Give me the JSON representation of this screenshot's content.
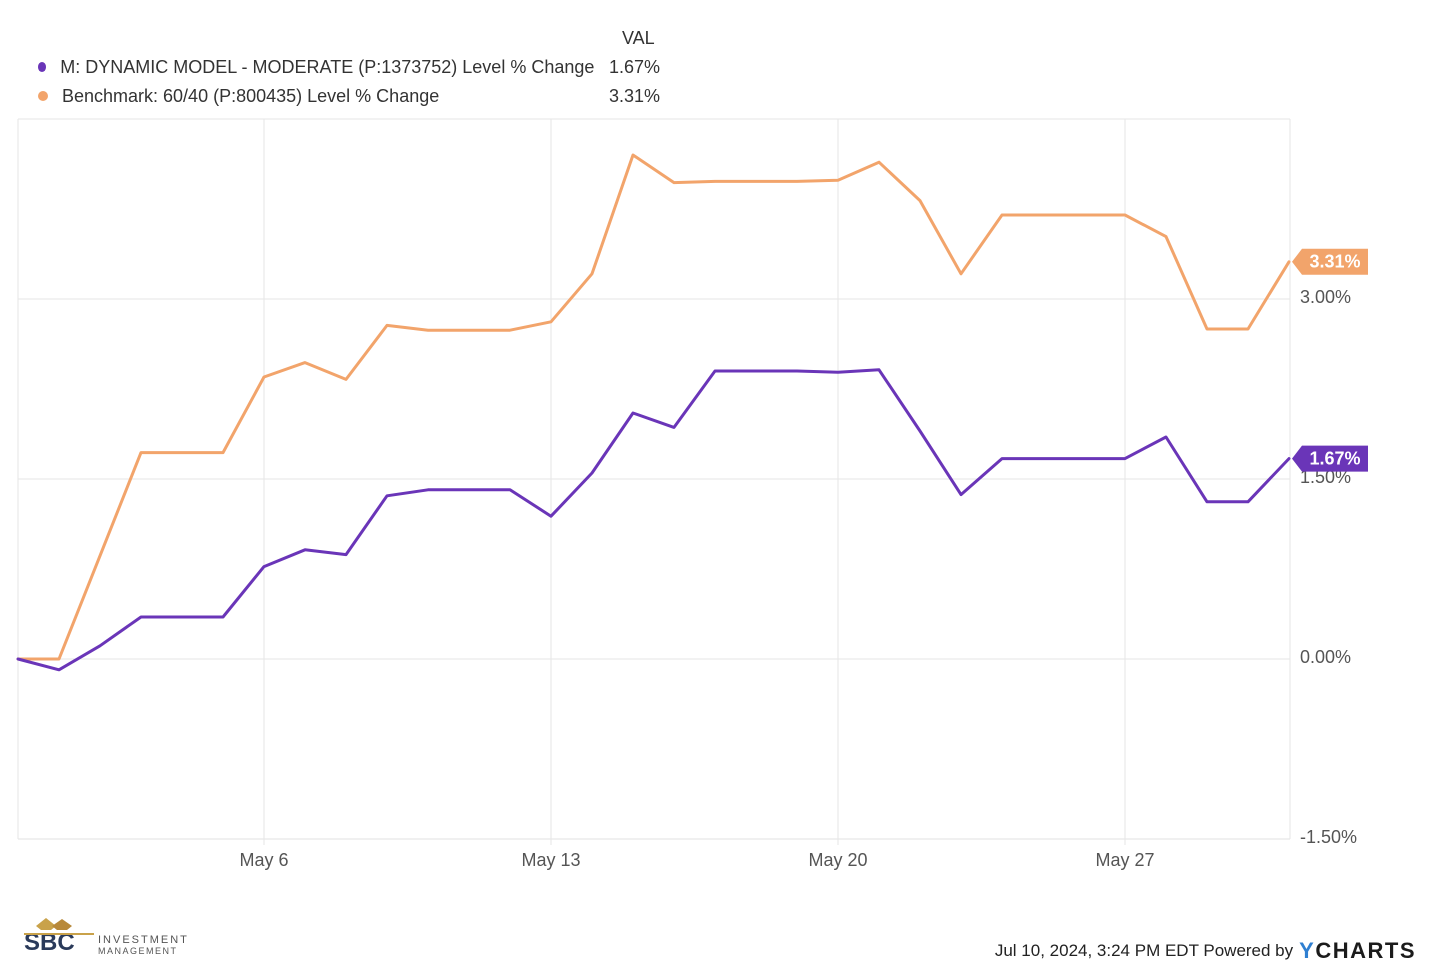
{
  "legend": {
    "header": "VAL",
    "items": [
      {
        "marker_color": "#6a35b8",
        "label": "M: DYNAMIC MODEL - MODERATE (P:1373752) Level % Change",
        "value": "1.67%"
      },
      {
        "marker_color": "#f2a46b",
        "label": "Benchmark: 60/40 (P:800435) Level % Change",
        "value": "3.31%"
      }
    ]
  },
  "chart_data": {
    "type": "line",
    "ylim": [
      -1.5,
      4.5
    ],
    "yticks": [
      3.0,
      1.5,
      0.0,
      -1.5
    ],
    "ytick_labels": [
      "3.00%",
      "1.50%",
      "0.00%",
      "-1.50%"
    ],
    "xticks": [
      {
        "label": "May 6",
        "index": 6
      },
      {
        "label": "May 13",
        "index": 13
      },
      {
        "label": "May 20",
        "index": 20
      },
      {
        "label": "May 27",
        "index": 27
      }
    ],
    "x_count": 32,
    "series": [
      {
        "name": "Benchmark: 60/40 (P:800435) Level % Change",
        "color": "#f2a46b",
        "end_label": "3.31%",
        "points": [
          [
            0,
            0.0
          ],
          [
            1,
            0.0
          ],
          [
            3,
            1.72
          ],
          [
            4,
            1.72
          ],
          [
            5,
            1.72
          ],
          [
            6,
            2.35
          ],
          [
            7,
            2.47
          ],
          [
            8,
            2.33
          ],
          [
            9,
            2.78
          ],
          [
            10,
            2.74
          ],
          [
            11,
            2.74
          ],
          [
            12,
            2.74
          ],
          [
            13,
            2.81
          ],
          [
            14,
            3.21
          ],
          [
            15,
            4.2
          ],
          [
            16,
            3.97
          ],
          [
            17,
            3.98
          ],
          [
            18,
            3.98
          ],
          [
            19,
            3.98
          ],
          [
            20,
            3.99
          ],
          [
            21,
            4.14
          ],
          [
            22,
            3.82
          ],
          [
            23,
            3.21
          ],
          [
            24,
            3.7
          ],
          [
            25,
            3.7
          ],
          [
            26,
            3.7
          ],
          [
            27,
            3.7
          ],
          [
            28,
            3.52
          ],
          [
            29,
            2.75
          ],
          [
            30,
            2.75
          ],
          [
            31,
            3.31
          ]
        ]
      },
      {
        "name": "M: DYNAMIC MODEL - MODERATE (P:1373752) Level % Change",
        "color": "#6a35b8",
        "end_label": "1.67%",
        "points": [
          [
            0,
            0.0
          ],
          [
            1,
            -0.09
          ],
          [
            2,
            0.11
          ],
          [
            3,
            0.35
          ],
          [
            4,
            0.35
          ],
          [
            5,
            0.35
          ],
          [
            6,
            0.77
          ],
          [
            7,
            0.91
          ],
          [
            8,
            0.87
          ],
          [
            9,
            1.36
          ],
          [
            10,
            1.41
          ],
          [
            11,
            1.41
          ],
          [
            12,
            1.41
          ],
          [
            13,
            1.19
          ],
          [
            14,
            1.55
          ],
          [
            15,
            2.05
          ],
          [
            16,
            1.93
          ],
          [
            17,
            2.4
          ],
          [
            18,
            2.4
          ],
          [
            19,
            2.4
          ],
          [
            20,
            2.39
          ],
          [
            21,
            2.41
          ],
          [
            22,
            1.9
          ],
          [
            23,
            1.37
          ],
          [
            24,
            1.67
          ],
          [
            25,
            1.67
          ],
          [
            26,
            1.67
          ],
          [
            27,
            1.67
          ],
          [
            28,
            1.85
          ],
          [
            29,
            1.31
          ],
          [
            30,
            1.31
          ],
          [
            31,
            1.67
          ]
        ]
      }
    ]
  },
  "footer": {
    "logo_text_primary": "SBC",
    "logo_text_secondary_1": "INVESTMENT",
    "logo_text_secondary_2": "MANAGEMENT",
    "timestamp": "Jul 10, 2024, 3:24 PM EDT Powered by",
    "brand_y": "Y",
    "brand_rest": "CHARTS"
  }
}
